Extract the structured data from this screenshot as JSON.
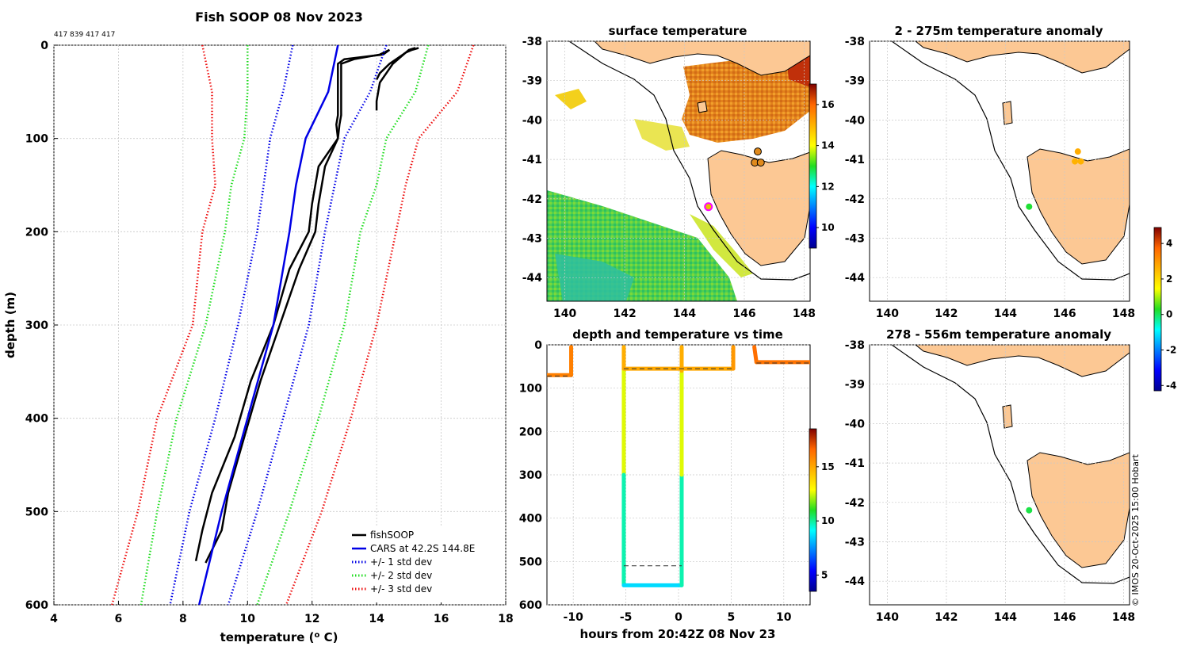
{
  "figure_title": "Fish SOOP 08 Nov 2023",
  "ids_text": "417 839 417 417",
  "credit": "© IMOS 20-Oct-2025 15:00 Hobart",
  "colors": {
    "fishsoop": "#000000",
    "cars": "#0000e6",
    "std1": "#0000e6",
    "std2": "#22dd22",
    "std3": "#ee1111",
    "land": "#fcc894",
    "marker_edge": "#ff00ff"
  },
  "chart_data": [
    {
      "id": "profile",
      "type": "line",
      "title": "",
      "xlabel": "temperature (",
      "xlabel_sup": "o",
      "xlabel_tail": " C)",
      "ylabel": "depth (m)",
      "xlim": [
        4,
        18
      ],
      "ylim": [
        600,
        0
      ],
      "xticks": [
        4,
        6,
        8,
        10,
        12,
        14,
        16,
        18
      ],
      "yticks": [
        0,
        100,
        200,
        300,
        400,
        500,
        600
      ],
      "grid": true,
      "legend": {
        "position": "bottom-right",
        "entries": [
          "fishSOOP",
          "CARS at 42.2S 144.8E",
          "+/- 1 std dev",
          "+/- 2 std dev",
          "+/- 3 std dev"
        ]
      },
      "series": [
        {
          "name": "fishSOOP cast 1",
          "style": "solid",
          "color": "black",
          "depth": [
            5,
            10,
            15,
            20,
            40,
            60,
            75,
            85,
            100,
            130,
            170,
            200,
            240,
            300,
            360,
            420,
            480,
            520,
            555
          ],
          "temp": [
            14.4,
            14.1,
            13.3,
            12.9,
            12.9,
            12.9,
            12.9,
            12.85,
            12.8,
            12.4,
            12.2,
            12.1,
            11.6,
            11.0,
            10.4,
            9.9,
            9.4,
            9.2,
            8.7
          ]
        },
        {
          "name": "fishSOOP cast 2",
          "style": "solid",
          "color": "black",
          "depth": [
            5,
            10,
            15,
            20,
            40,
            60,
            75,
            85,
            100,
            130,
            170,
            200,
            240,
            300,
            360,
            420,
            480,
            520,
            553
          ],
          "temp": [
            14.4,
            14.2,
            13.0,
            12.8,
            12.8,
            12.8,
            12.8,
            12.75,
            12.8,
            12.2,
            12.0,
            11.9,
            11.3,
            10.8,
            10.1,
            9.6,
            8.9,
            8.6,
            8.4
          ]
        },
        {
          "name": "fishSOOP shallow 1",
          "style": "solid",
          "color": "black",
          "depth": [
            3,
            5,
            8,
            20,
            30,
            37
          ],
          "temp": [
            15.3,
            15.1,
            14.9,
            14.4,
            14.1,
            14.0
          ]
        },
        {
          "name": "fishSOOP shallow 2",
          "style": "solid",
          "color": "black",
          "depth": [
            3,
            5,
            8,
            20,
            30,
            40,
            60,
            70
          ],
          "temp": [
            15.2,
            15.0,
            14.9,
            14.5,
            14.3,
            14.1,
            14.0,
            14.0
          ]
        },
        {
          "name": "CARS at 42.2S 144.8E",
          "style": "solid",
          "color": "blue",
          "depth": [
            0,
            50,
            100,
            150,
            200,
            300,
            400,
            500,
            600
          ],
          "temp": [
            12.8,
            12.5,
            11.8,
            11.5,
            11.3,
            10.8,
            10.0,
            9.2,
            8.5
          ]
        },
        {
          "name": "+1 std dev",
          "style": "dotted",
          "color": "blue",
          "depth": [
            0,
            50,
            100,
            150,
            200,
            300,
            400,
            500,
            600
          ],
          "temp": [
            14.3,
            13.8,
            13.0,
            12.7,
            12.4,
            11.9,
            11.1,
            10.3,
            9.4
          ]
        },
        {
          "name": "-1 std dev",
          "style": "dotted",
          "color": "blue",
          "depth": [
            0,
            50,
            100,
            150,
            200,
            300,
            400,
            500,
            600
          ],
          "temp": [
            11.4,
            11.1,
            10.7,
            10.5,
            10.3,
            9.7,
            9.0,
            8.2,
            7.6
          ]
        },
        {
          "name": "+2 std dev",
          "style": "dotted",
          "color": "green",
          "depth": [
            0,
            50,
            100,
            150,
            200,
            300,
            400,
            500,
            600
          ],
          "temp": [
            15.6,
            15.2,
            14.3,
            14.0,
            13.5,
            13.0,
            12.2,
            11.3,
            10.3
          ]
        },
        {
          "name": "-2 std dev",
          "style": "dotted",
          "color": "green",
          "depth": [
            0,
            50,
            100,
            150,
            200,
            300,
            400,
            500,
            600
          ],
          "temp": [
            10.0,
            10.0,
            9.9,
            9.5,
            9.3,
            8.7,
            7.8,
            7.2,
            6.7
          ]
        },
        {
          "name": "+3 std dev",
          "style": "dotted",
          "color": "red",
          "depth": [
            0,
            50,
            100,
            150,
            200,
            300,
            400,
            500,
            600
          ],
          "temp": [
            17.0,
            16.5,
            15.3,
            14.9,
            14.6,
            14.0,
            13.2,
            12.3,
            11.2
          ]
        },
        {
          "name": "-3 std dev",
          "style": "dotted",
          "color": "red",
          "depth": [
            0,
            50,
            100,
            150,
            200,
            300,
            400,
            500,
            600
          ],
          "temp": [
            8.6,
            8.9,
            8.9,
            9.0,
            8.6,
            8.3,
            7.2,
            6.6,
            5.8
          ]
        }
      ]
    },
    {
      "id": "sst_map",
      "type": "heatmap",
      "title": "surface temperature",
      "xlim": [
        139.4,
        148.2
      ],
      "ylim": [
        -44.6,
        -38
      ],
      "xticks": [
        140,
        142,
        144,
        146,
        148
      ],
      "yticks": [
        -38,
        -39,
        -40,
        -41,
        -42,
        -43,
        -44
      ],
      "colorbar": {
        "range": [
          9,
          17
        ],
        "ticks": [
          10,
          12,
          14,
          16
        ]
      },
      "ship_position": [
        144.8,
        -42.2
      ],
      "cast_positions": [
        [
          146.45,
          -40.8
        ],
        [
          146.35,
          -41.08
        ],
        [
          146.55,
          -41.08
        ]
      ]
    },
    {
      "id": "depth_time",
      "type": "scatter",
      "title": "depth and temperature vs time",
      "xlabel": "hours from 20:42Z 08 Nov 23",
      "xlim": [
        -12.5,
        12.5
      ],
      "ylim": [
        600,
        0
      ],
      "xticks": [
        -10,
        -5,
        0,
        5,
        10
      ],
      "yticks": [
        0,
        100,
        200,
        300,
        400,
        500,
        600
      ],
      "colorbar": {
        "range": [
          3.5,
          18.5
        ],
        "ticks": [
          5,
          10,
          15
        ]
      },
      "tracks": [
        {
          "time": [
            -12.5,
            -10.2,
            -10.2
          ],
          "depth": [
            70,
            70,
            5
          ],
          "temp": [
            16,
            16,
            16
          ]
        },
        {
          "time": [
            -5.2,
            -5.2,
            -5.2,
            -5.2,
            0.3,
            0.3,
            0.3,
            0.3
          ],
          "depth": [
            5,
            60,
            300,
            555,
            555,
            300,
            60,
            5
          ],
          "temp": [
            15.5,
            14.2,
            11.0,
            8.6,
            8.6,
            11.0,
            14.2,
            15.5
          ]
        },
        {
          "time": [
            -5.2,
            5.2,
            5.2
          ],
          "depth": [
            55,
            55,
            5
          ],
          "temp": [
            15,
            15,
            15.8
          ]
        },
        {
          "time": [
            7.2,
            7.4,
            12.5
          ],
          "depth": [
            5,
            40,
            40
          ],
          "temp": [
            16.5,
            16.3,
            16.3
          ]
        }
      ],
      "reference_lines": [
        {
          "time": [
            -12.5,
            -10.2
          ],
          "depth": 72
        },
        {
          "time": [
            -5.2,
            5.2
          ],
          "depth": 55
        },
        {
          "time": [
            7.4,
            12.5
          ],
          "depth": 42
        },
        {
          "time": [
            -5.2,
            0.3
          ],
          "depth": 510
        }
      ]
    },
    {
      "id": "anomaly_2_275",
      "type": "scatter",
      "title": "2 - 275m temperature anomaly",
      "xlim": [
        139.4,
        148.2
      ],
      "ylim": [
        -44.6,
        -38
      ],
      "xticks": [
        140,
        142,
        144,
        146,
        148
      ],
      "yticks": [
        -38,
        -39,
        -40,
        -41,
        -42,
        -43,
        -44
      ],
      "points": [
        {
          "lon": 144.8,
          "lat": -42.2,
          "anomaly": 0.2
        },
        {
          "lon": 146.45,
          "lat": -40.8,
          "anomaly": 2.7
        },
        {
          "lon": 146.35,
          "lat": -41.05,
          "anomaly": 2.6
        },
        {
          "lon": 146.55,
          "lat": -41.05,
          "anomaly": 2.6
        }
      ],
      "colorbar": {
        "range": [
          -4.3,
          4.9
        ],
        "ticks": [
          -4,
          -2,
          0,
          2,
          4
        ]
      }
    },
    {
      "id": "anomaly_278_556",
      "type": "scatter",
      "title": "278 - 556m temperature anomaly",
      "xlim": [
        139.4,
        148.2
      ],
      "ylim": [
        -44.6,
        -38
      ],
      "xticks": [
        140,
        142,
        144,
        146,
        148
      ],
      "yticks": [
        -38,
        -39,
        -40,
        -41,
        -42,
        -43,
        -44
      ],
      "points": [
        {
          "lon": 144.8,
          "lat": -42.2,
          "anomaly": 0.1
        }
      ]
    }
  ]
}
